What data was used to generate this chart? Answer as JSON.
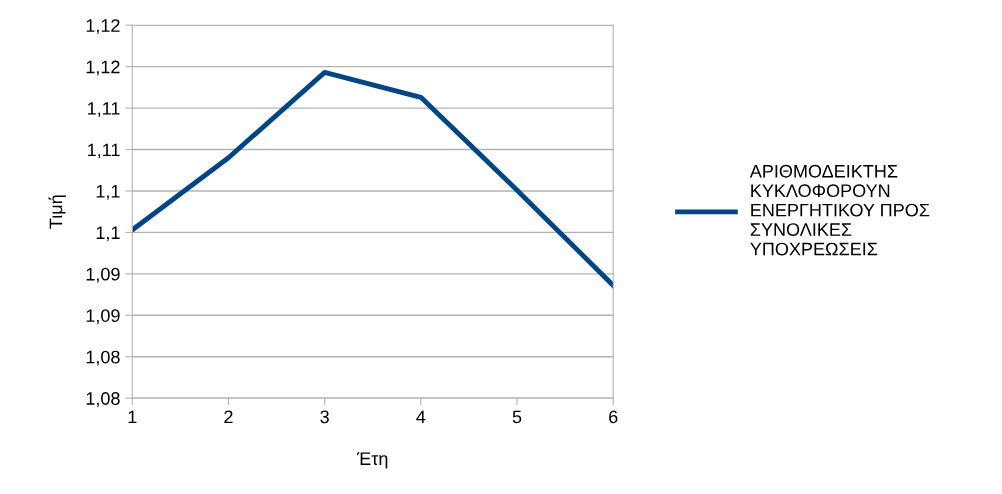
{
  "chart_data": {
    "type": "line",
    "xlabel": "Έτη",
    "ylabel": "Τιμή",
    "x": [
      1,
      2,
      3,
      4,
      5,
      6
    ],
    "series": [
      {
        "name": "ΑΡΙΘΜΟΔΕΙΚΤΗΣ\nΚΥΚΛΟΦΟΡΟΥΝ\nΕΝΕΡΓΗΤΙΚΟΥ ΠΡΟΣ\nΣΥΝΟΛΙΚΕΣ\nΥΠΟΧΡΕΩΣΕΙΣ",
        "color": "#004586",
        "values": [
          1.0953,
          1.104,
          1.1143,
          1.1113,
          1.1001,
          1.0886
        ]
      }
    ],
    "xlim": [
      1,
      6
    ],
    "xticks": [
      1,
      2,
      3,
      4,
      5,
      6
    ],
    "ylim": [
      1.075,
      1.12
    ],
    "yticks": [
      {
        "value": 1.075,
        "label": "1,08"
      },
      {
        "value": 1.08,
        "label": "1,08"
      },
      {
        "value": 1.085,
        "label": "1,09"
      },
      {
        "value": 1.09,
        "label": "1,09"
      },
      {
        "value": 1.095,
        "label": "1,1"
      },
      {
        "value": 1.1,
        "label": "1,1"
      },
      {
        "value": 1.105,
        "label": "1,11"
      },
      {
        "value": 1.11,
        "label": "1,11"
      },
      {
        "value": 1.115,
        "label": "1,12"
      },
      {
        "value": 1.12,
        "label": "1,12"
      }
    ],
    "grid": "y",
    "legend": "right",
    "marker": "none",
    "line_style": "solid"
  }
}
